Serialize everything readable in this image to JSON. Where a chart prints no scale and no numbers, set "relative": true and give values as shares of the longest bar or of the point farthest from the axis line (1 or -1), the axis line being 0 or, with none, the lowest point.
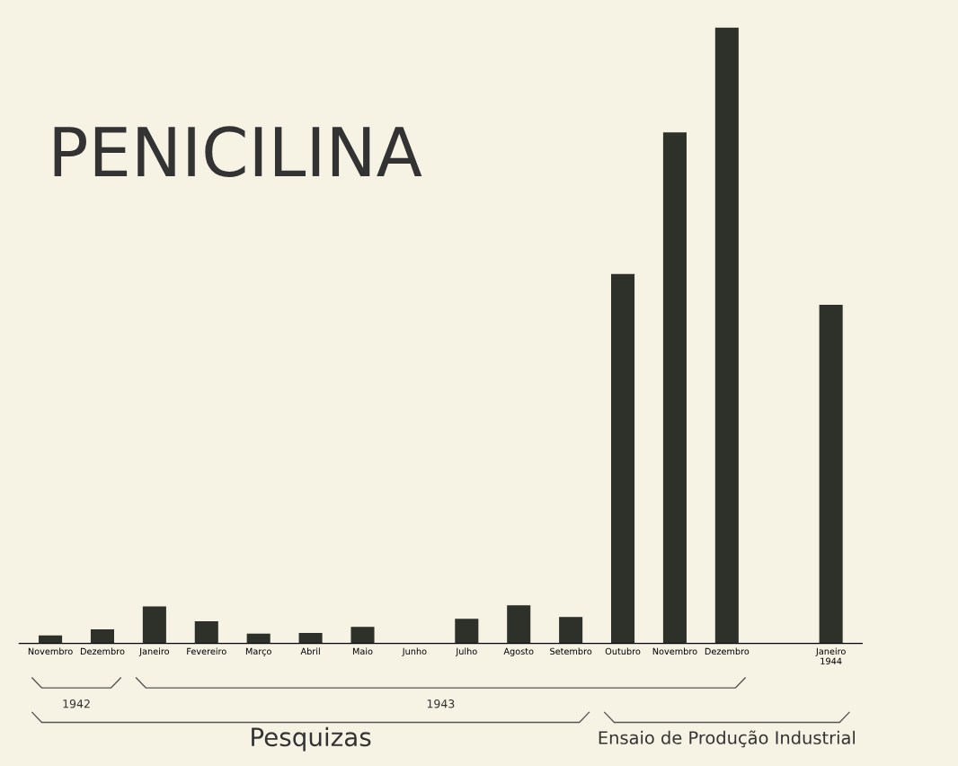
{
  "chart_data": {
    "type": "bar",
    "title": "PENICILINA",
    "relative": true,
    "color": "#2e3129",
    "categories": [
      "Novembro",
      "Dezembro",
      "Janeiro",
      "Fevereiro",
      "Março",
      "Abril",
      "Maio",
      "Junho",
      "Julho",
      "Agosto",
      "Setembro",
      "Outubro",
      "Novembro",
      "Dezembro",
      null,
      "Janeiro\n1944"
    ],
    "values": [
      0.013,
      0.023,
      0.06,
      0.036,
      0.016,
      0.017,
      0.027,
      0,
      0.04,
      0.062,
      0.043,
      0.6,
      0.83,
      1,
      null,
      0.55
    ],
    "annotations": [
      "1942",
      "1943",
      "Pesquizas",
      "Ensaio de Produção Industrial"
    ],
    "grid": false,
    "legend": false
  }
}
